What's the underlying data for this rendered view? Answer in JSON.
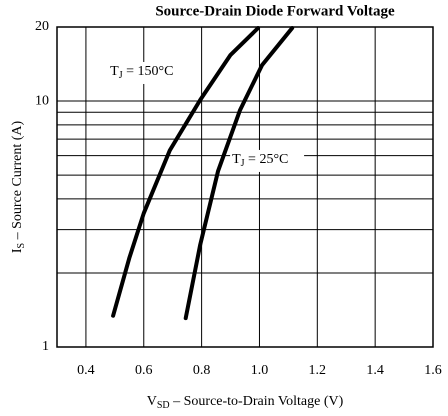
{
  "chart_data": {
    "type": "line",
    "title": "Source-Drain Diode Forward Voltage",
    "xlabel": [
      "V",
      "SD",
      " – Source-to-Drain Voltage (V)"
    ],
    "ylabel": [
      "I",
      "S",
      " – Source Current (A)"
    ],
    "xlim": [
      0.3,
      1.6
    ],
    "xticks": [
      0.4,
      0.6,
      0.8,
      {
        "value": 1.0,
        "label": "1.0"
      },
      1.2,
      1.4,
      1.6
    ],
    "ylim": [
      1,
      20
    ],
    "yticks": [
      1,
      10,
      20
    ],
    "minor_yticks": [
      2,
      3,
      4,
      5,
      6,
      7,
      8,
      9
    ],
    "log_y": true,
    "grid": true,
    "series": [
      {
        "name": [
          "T",
          "J",
          " = 150°C"
        ],
        "color": "#000000",
        "x": [
          0.494,
          0.55,
          0.6,
          0.69,
          0.795,
          0.9,
          0.995
        ],
        "values": [
          1.34,
          2.3,
          3.5,
          6.3,
          10.1,
          15.4,
          19.8
        ]
      },
      {
        "name": [
          "T",
          "J",
          " = 25°C"
        ],
        "color": "#000000",
        "x": [
          0.745,
          0.795,
          0.857,
          0.933,
          1.009,
          1.113
        ],
        "values": [
          1.31,
          2.6,
          5.2,
          9.2,
          14,
          19.8
        ]
      }
    ]
  }
}
